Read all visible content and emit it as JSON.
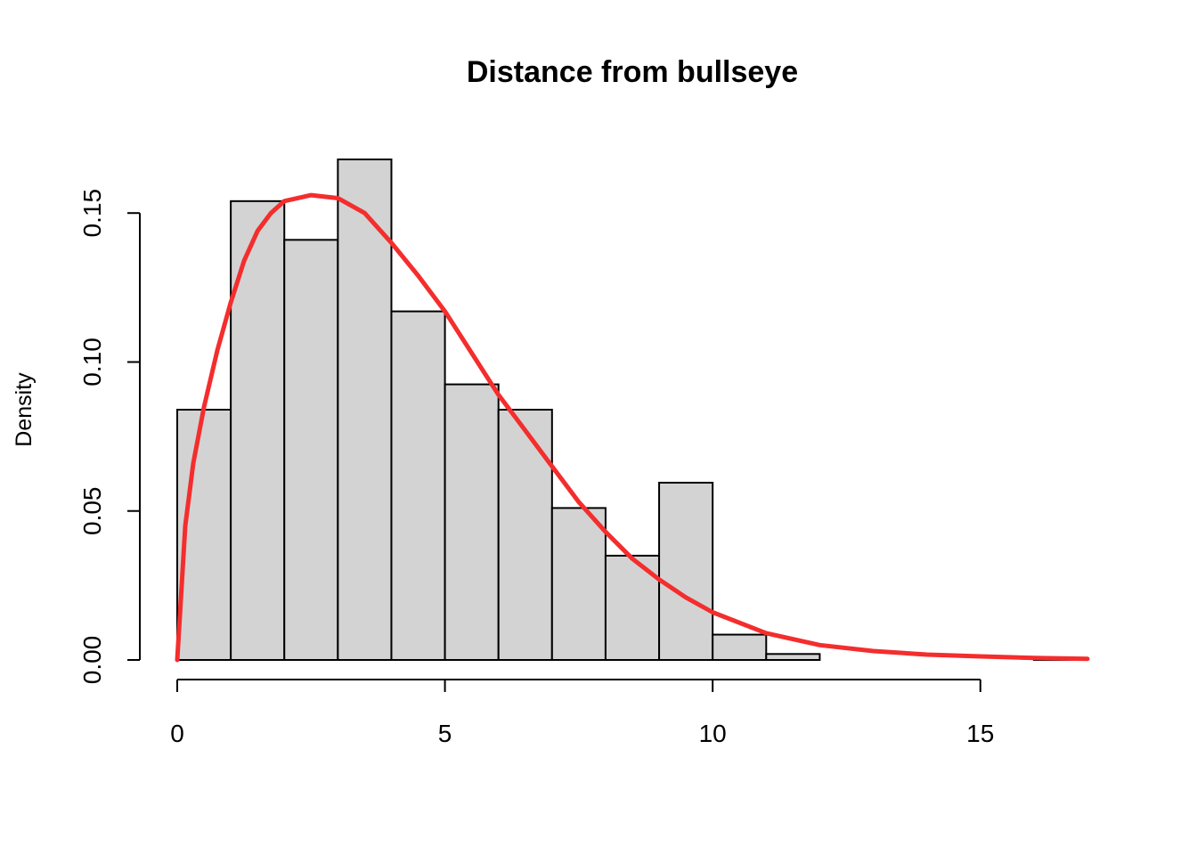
{
  "chart_data": {
    "type": "bar",
    "title": "Distance from bullseye",
    "xlabel": "",
    "ylabel": "Density",
    "xlim": [
      0,
      17
    ],
    "ylim": [
      0,
      0.168
    ],
    "x_ticks": [
      "0",
      "5",
      "10",
      "15"
    ],
    "y_ticks": [
      "0.00",
      "0.05",
      "0.10",
      "0.15"
    ],
    "grid": false,
    "legend": "none",
    "histogram": {
      "bin_width": 1,
      "bins": [
        {
          "from": 0,
          "to": 1,
          "density": 0.084
        },
        {
          "from": 1,
          "to": 2,
          "density": 0.154
        },
        {
          "from": 2,
          "to": 3,
          "density": 0.141
        },
        {
          "from": 3,
          "to": 4,
          "density": 0.168
        },
        {
          "from": 4,
          "to": 5,
          "density": 0.117
        },
        {
          "from": 5,
          "to": 6,
          "density": 0.0925
        },
        {
          "from": 6,
          "to": 7,
          "density": 0.084
        },
        {
          "from": 7,
          "to": 8,
          "density": 0.051
        },
        {
          "from": 8,
          "to": 9,
          "density": 0.035
        },
        {
          "from": 9,
          "to": 10,
          "density": 0.0595
        },
        {
          "from": 10,
          "to": 11,
          "density": 0.0085
        },
        {
          "from": 11,
          "to": 12,
          "density": 0.002
        },
        {
          "from": 12,
          "to": 13,
          "density": 0
        },
        {
          "from": 13,
          "to": 14,
          "density": 0
        },
        {
          "from": 14,
          "to": 15,
          "density": 0
        },
        {
          "from": 15,
          "to": 16,
          "density": 0
        },
        {
          "from": 16,
          "to": 17,
          "density": 0.0005
        }
      ],
      "color": "#d3d3d3"
    },
    "density_curve": {
      "color": "#f42d2d",
      "x": [
        0,
        0.15,
        0.3,
        0.5,
        0.75,
        1,
        1.25,
        1.5,
        1.75,
        2,
        2.5,
        3,
        3.5,
        4,
        4.5,
        5,
        5.5,
        6,
        6.5,
        7,
        7.5,
        8,
        8.5,
        9,
        9.5,
        10,
        11,
        12,
        13,
        14,
        15,
        16,
        17
      ],
      "y": [
        0,
        0.045,
        0.066,
        0.085,
        0.104,
        0.12,
        0.134,
        0.144,
        0.15,
        0.154,
        0.156,
        0.155,
        0.15,
        0.14,
        0.129,
        0.117,
        0.103,
        0.089,
        0.077,
        0.065,
        0.053,
        0.043,
        0.034,
        0.027,
        0.021,
        0.016,
        0.009,
        0.005,
        0.003,
        0.0018,
        0.0012,
        0.0007,
        0.0004
      ]
    }
  }
}
